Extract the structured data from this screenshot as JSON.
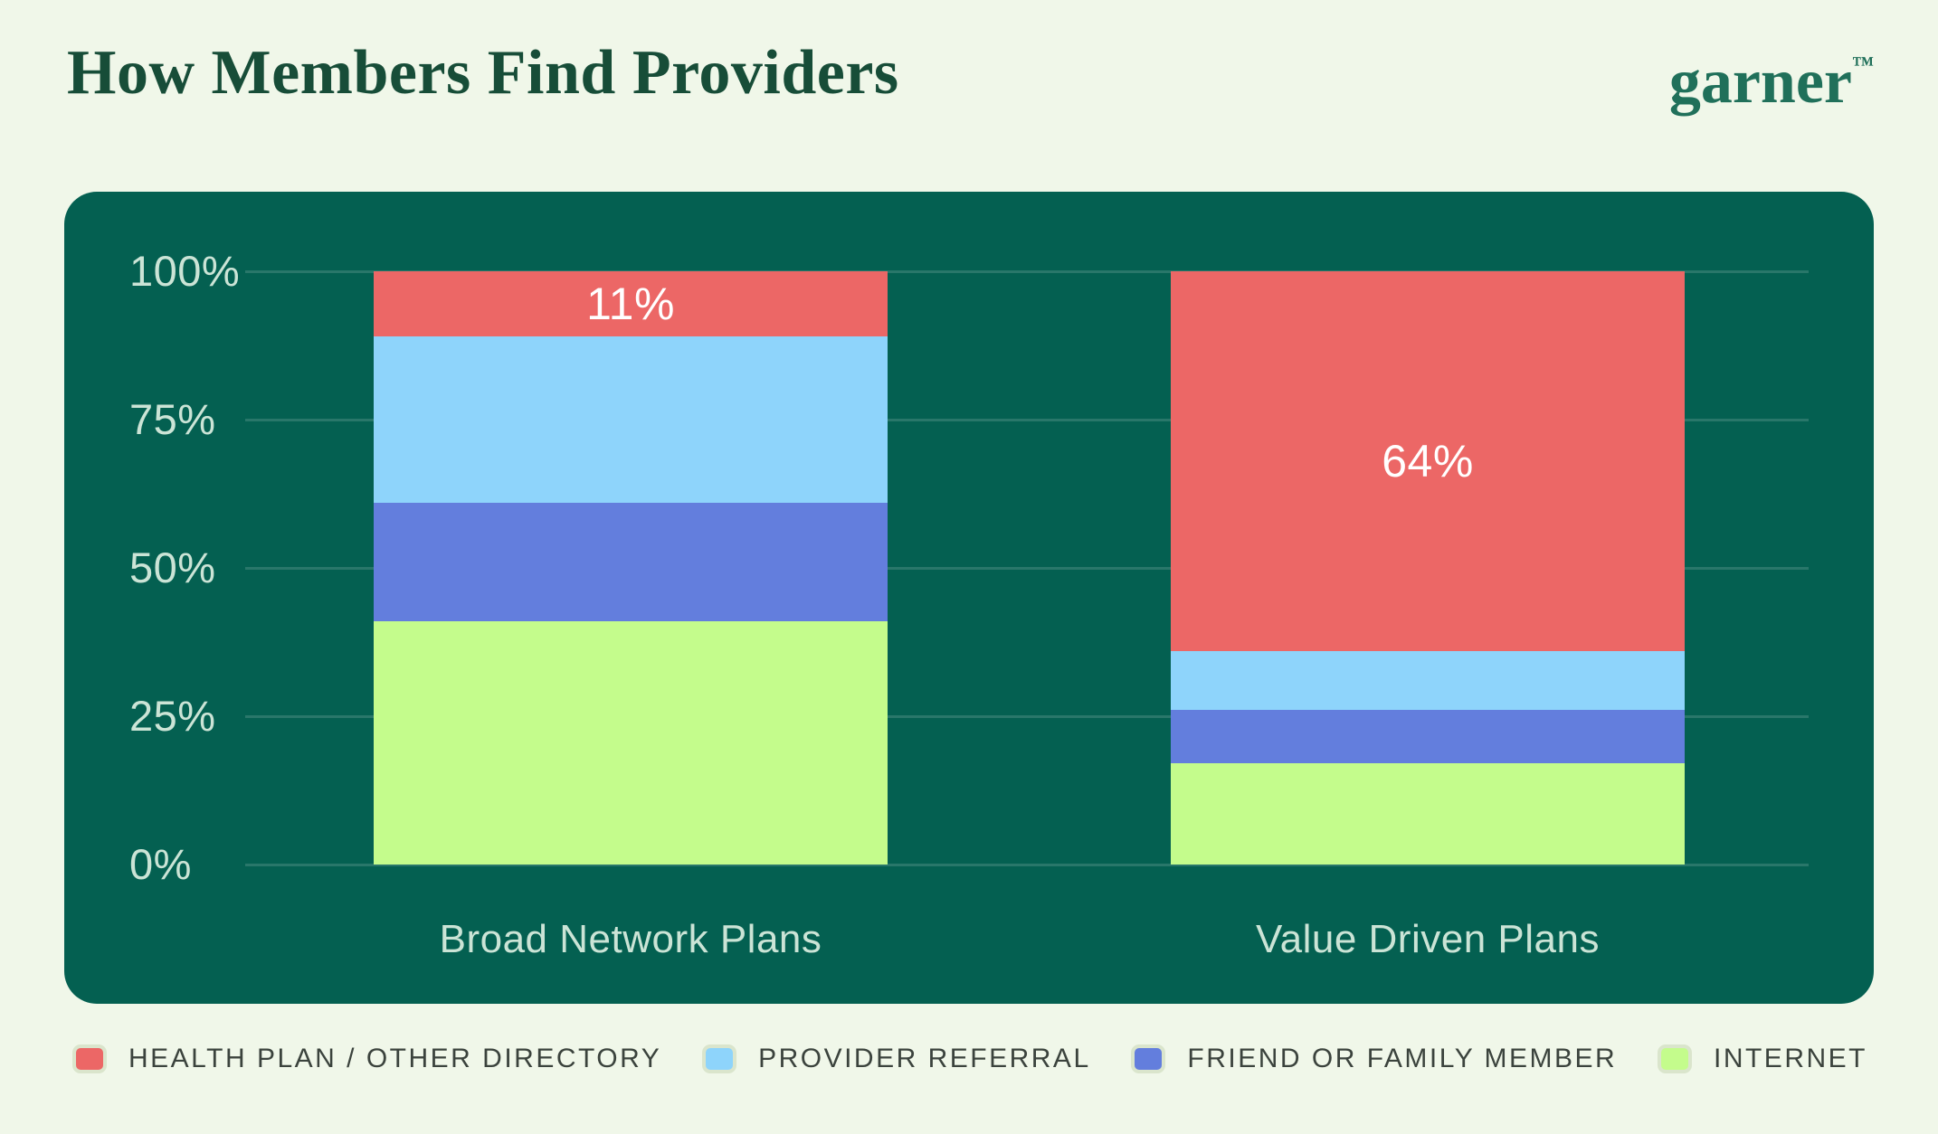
{
  "header": {
    "title": "How Members Find Providers",
    "logo_text": "garner",
    "logo_tm": "™"
  },
  "colors": {
    "page_bg": "#F0F7E9",
    "panel_bg": "#046051",
    "title_text": "#174D38",
    "logo_text": "#20705A",
    "axis_label": "#CBE4D6",
    "gridline": "rgba(255,255,255,0.15)",
    "value_label": "#FFFFFF",
    "legend_text": "#3B433D",
    "swatch_border": "#DAE5CC"
  },
  "chart_data": {
    "type": "bar",
    "variant": "stacked-percentage-column",
    "title": "How Members Find Providers",
    "categories": [
      "Broad Network Plans",
      "Value Driven Plans"
    ],
    "series": [
      {
        "name": "HEALTH PLAN / OTHER DIRECTORY",
        "color": "#EC6766",
        "values": [
          11,
          64
        ],
        "show_value_labels": true
      },
      {
        "name": "PROVIDER REFERRAL",
        "color": "#8ED4FB",
        "values": [
          28,
          10
        ],
        "show_value_labels": false
      },
      {
        "name": "FRIEND OR FAMILY MEMBER",
        "color": "#637EDD",
        "values": [
          20,
          9
        ],
        "show_value_labels": false
      },
      {
        "name": "INTERNET",
        "color": "#C4FC8C",
        "values": [
          41,
          17
        ],
        "show_value_labels": false
      }
    ],
    "visible_value_labels": [
      "11%",
      "64%"
    ],
    "stack_order": "top-to-bottom",
    "yticks": [
      {
        "value": 100,
        "label": "100%"
      },
      {
        "value": 75,
        "label": "75%"
      },
      {
        "value": 50,
        "label": "50%"
      },
      {
        "value": 25,
        "label": "25%"
      },
      {
        "value": 0,
        "label": "0%"
      }
    ],
    "ylim": [
      0,
      100
    ],
    "grid": true,
    "legend_position": "bottom"
  }
}
